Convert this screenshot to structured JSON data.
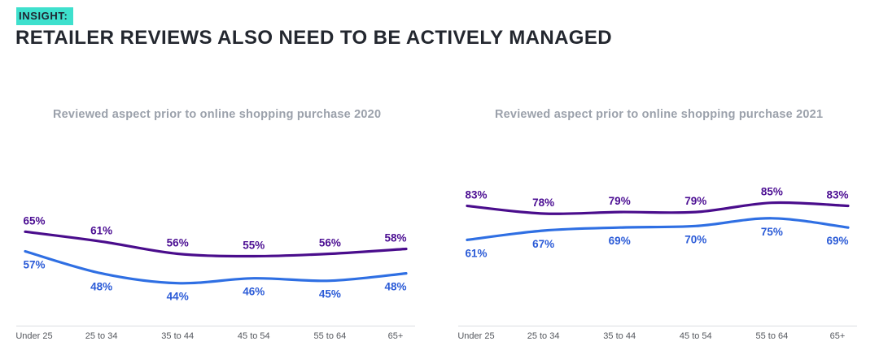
{
  "header": {
    "eyebrow": "INSIGHT:",
    "title": "RETAILER REVIEWS ALSO NEED TO BE ACTIVELY MANAGED"
  },
  "colors": {
    "highlight_teal": "#3EE0CD",
    "title_dark": "#23272F",
    "chart_title_gray": "#9BA1AB",
    "tick_gray": "#55585E",
    "axis_line": "#DBDDE1",
    "purple_line": "#4A0D8C",
    "blue_line": "#2F6FE3"
  },
  "chart_data": [
    {
      "type": "line",
      "title": "Reviewed aspect prior to online shopping purchase 2020",
      "categories": [
        "Under 25",
        "25 to 34",
        "35 to 44",
        "45 to 54",
        "55 to 64",
        "65+"
      ],
      "series": [
        {
          "name": "purple",
          "color": "#4A0D8C",
          "label_color": "#4C0F93",
          "label_position": "above",
          "values": [
            65,
            61,
            56,
            55,
            56,
            58
          ]
        },
        {
          "name": "blue",
          "color": "#2F6FE3",
          "label_color": "#2B5BD7",
          "label_position": "below",
          "values": [
            57,
            48,
            44,
            46,
            45,
            48
          ]
        }
      ],
      "value_suffix": "%",
      "ylim": [
        27,
        85
      ],
      "grid": false,
      "legend": "none"
    },
    {
      "type": "line",
      "title": "Reviewed aspect prior to online shopping purchase 2021",
      "categories": [
        "Under 25",
        "25 to 34",
        "35 to 44",
        "45 to 54",
        "55 to 64",
        "65+"
      ],
      "series": [
        {
          "name": "purple",
          "color": "#4A0D8C",
          "label_color": "#4C0F93",
          "label_position": "above",
          "values": [
            83,
            78,
            79,
            79,
            85,
            83
          ]
        },
        {
          "name": "blue",
          "color": "#2F6FE3",
          "label_color": "#2B5BD7",
          "label_position": "below",
          "values": [
            61,
            67,
            69,
            70,
            75,
            69
          ]
        }
      ],
      "value_suffix": "%",
      "ylim": [
        6,
        98
      ],
      "grid": false,
      "legend": "none"
    }
  ]
}
